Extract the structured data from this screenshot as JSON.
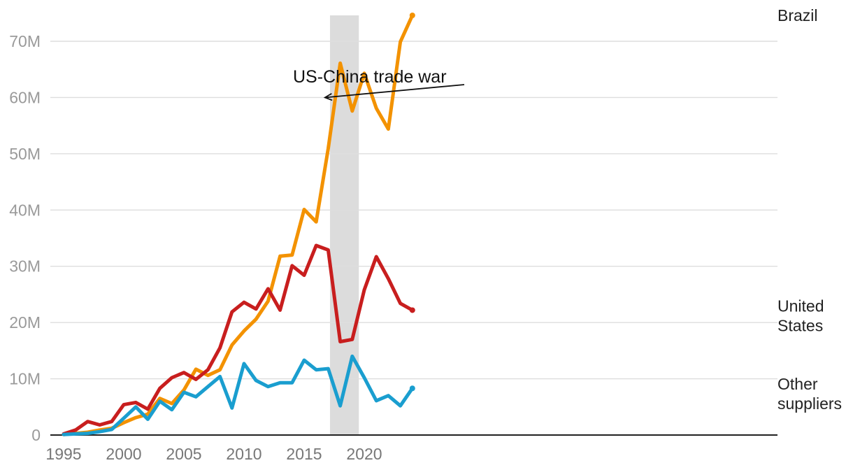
{
  "chart_data": {
    "type": "line",
    "title": "",
    "xlabel": "",
    "ylabel": "",
    "x": [
      1995,
      1996,
      1997,
      1998,
      1999,
      2000,
      2001,
      2002,
      2003,
      2004,
      2005,
      2006,
      2007,
      2008,
      2009,
      2010,
      2011,
      2012,
      2013,
      2014,
      2015,
      2016,
      2017,
      2018,
      2019,
      2020,
      2021,
      2022,
      2023,
      2024
    ],
    "xticks": [
      1995,
      2000,
      2005,
      2010,
      2015,
      2020
    ],
    "xtick_labels": [
      "1995",
      "2000",
      "2005",
      "2010",
      "2015",
      "2020"
    ],
    "ylim": [
      0,
      70000000
    ],
    "yticks": [
      0,
      10000000,
      20000000,
      30000000,
      40000000,
      50000000,
      60000000,
      70000000
    ],
    "ytick_labels": [
      "0",
      "10M",
      "20M",
      "30M",
      "40M",
      "50M",
      "60M",
      "70M"
    ],
    "grid": true,
    "series": [
      {
        "name": "Brazil",
        "label_lines": [
          "Brazil"
        ],
        "color": "#f39200",
        "values": [
          0.1,
          0.3,
          0.5,
          0.9,
          1.2,
          2.2,
          3.1,
          3.7,
          6.5,
          5.6,
          8.0,
          11.7,
          10.6,
          11.6,
          16.0,
          18.5,
          20.6,
          23.8,
          31.8,
          32.0,
          40.1,
          37.9,
          50.9,
          66.1,
          57.6,
          64.3,
          58.1,
          54.4,
          69.9,
          74.6
        ]
      },
      {
        "name": "United States",
        "label_lines": [
          "United",
          "States"
        ],
        "color": "#c81e1e",
        "values": [
          0.2,
          0.9,
          2.4,
          1.8,
          2.4,
          5.4,
          5.8,
          4.6,
          8.3,
          10.2,
          11.1,
          9.9,
          11.6,
          15.5,
          21.9,
          23.6,
          22.4,
          26.0,
          22.2,
          30.1,
          28.4,
          33.7,
          32.9,
          16.6,
          17.0,
          25.8,
          31.7,
          27.8,
          23.4,
          22.2
        ]
      },
      {
        "name": "Other suppliers",
        "label_lines": [
          "Other",
          "suppliers"
        ],
        "color": "#1a9ecf",
        "values": [
          0.1,
          0.2,
          0.3,
          0.6,
          1.0,
          3.0,
          5.0,
          2.8,
          6.0,
          4.5,
          7.6,
          6.8,
          8.6,
          10.4,
          4.8,
          12.7,
          9.7,
          8.6,
          9.3,
          9.3,
          13.3,
          11.6,
          11.8,
          5.2,
          14.0,
          10.2,
          6.1,
          7.0,
          5.2,
          8.3
        ]
      }
    ],
    "value_scale": 1000000,
    "highlight_band": {
      "from": 2017.15,
      "to": 2019.55,
      "color": "#dcdcdc"
    },
    "annotation": {
      "text": "US-China trade war",
      "points_to_x": 2017.2,
      "points_to_y": 60.0
    }
  }
}
